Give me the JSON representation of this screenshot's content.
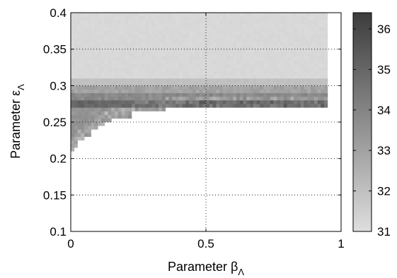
{
  "chart_data": {
    "type": "heatmap",
    "xlabel": "Parameter β",
    "xlabel_sub": "Λ",
    "ylabel": "Parameter ε",
    "ylabel_sub": "Λ",
    "xlim": [
      0,
      1
    ],
    "ylim": [
      0.1,
      0.4
    ],
    "x_ticks": [
      0,
      0.5,
      1
    ],
    "x_tick_labels": [
      "0",
      "0.5",
      "1"
    ],
    "y_ticks": [
      0.1,
      0.15,
      0.2,
      0.25,
      0.3,
      0.35,
      0.4
    ],
    "y_tick_labels": [
      "0.1",
      "0.15",
      "0.2",
      "0.25",
      "0.3",
      "0.35",
      "0.4"
    ],
    "grid": true,
    "colorbar": {
      "min": 31,
      "max": 36.4,
      "ticks": [
        31,
        32,
        33,
        34,
        35,
        36
      ],
      "tick_labels": [
        "31",
        "32",
        "33",
        "34",
        "35",
        "36"
      ],
      "color_low": "#dedede",
      "color_high": "#3c3c3c"
    },
    "x_step": 0.0125,
    "y_step": 0.005,
    "x_domain": [
      0,
      0.95
    ],
    "y_top": 0.4,
    "boundary": [
      {
        "x_from": 0.0,
        "x_to": 0.0125,
        "eps_min": 0.21
      },
      {
        "x_from": 0.0125,
        "x_to": 0.025,
        "eps_min": 0.215
      },
      {
        "x_from": 0.025,
        "x_to": 0.05,
        "eps_min": 0.225
      },
      {
        "x_from": 0.05,
        "x_to": 0.075,
        "eps_min": 0.23
      },
      {
        "x_from": 0.075,
        "x_to": 0.1,
        "eps_min": 0.24
      },
      {
        "x_from": 0.1,
        "x_to": 0.125,
        "eps_min": 0.245
      },
      {
        "x_from": 0.125,
        "x_to": 0.15,
        "eps_min": 0.25
      },
      {
        "x_from": 0.15,
        "x_to": 0.225,
        "eps_min": 0.255
      },
      {
        "x_from": 0.225,
        "x_to": 0.35,
        "eps_min": 0.265
      },
      {
        "x_from": 0.35,
        "x_to": 0.95,
        "eps_min": 0.27
      }
    ],
    "value_profile": [
      {
        "eps_from": 0.31,
        "eps_to": 0.4,
        "value": 31.2
      },
      {
        "eps_from": 0.3,
        "eps_to": 0.31,
        "value": 32.0
      },
      {
        "eps_from": 0.29,
        "eps_to": 0.3,
        "value": 33.0
      },
      {
        "eps_from": 0.28,
        "eps_to": 0.29,
        "value": 33.8
      },
      {
        "eps_from": 0.27,
        "eps_to": 0.28,
        "value": 35.0
      },
      {
        "eps_from": 0.2,
        "eps_to": 0.27,
        "value": 33.5
      }
    ]
  }
}
